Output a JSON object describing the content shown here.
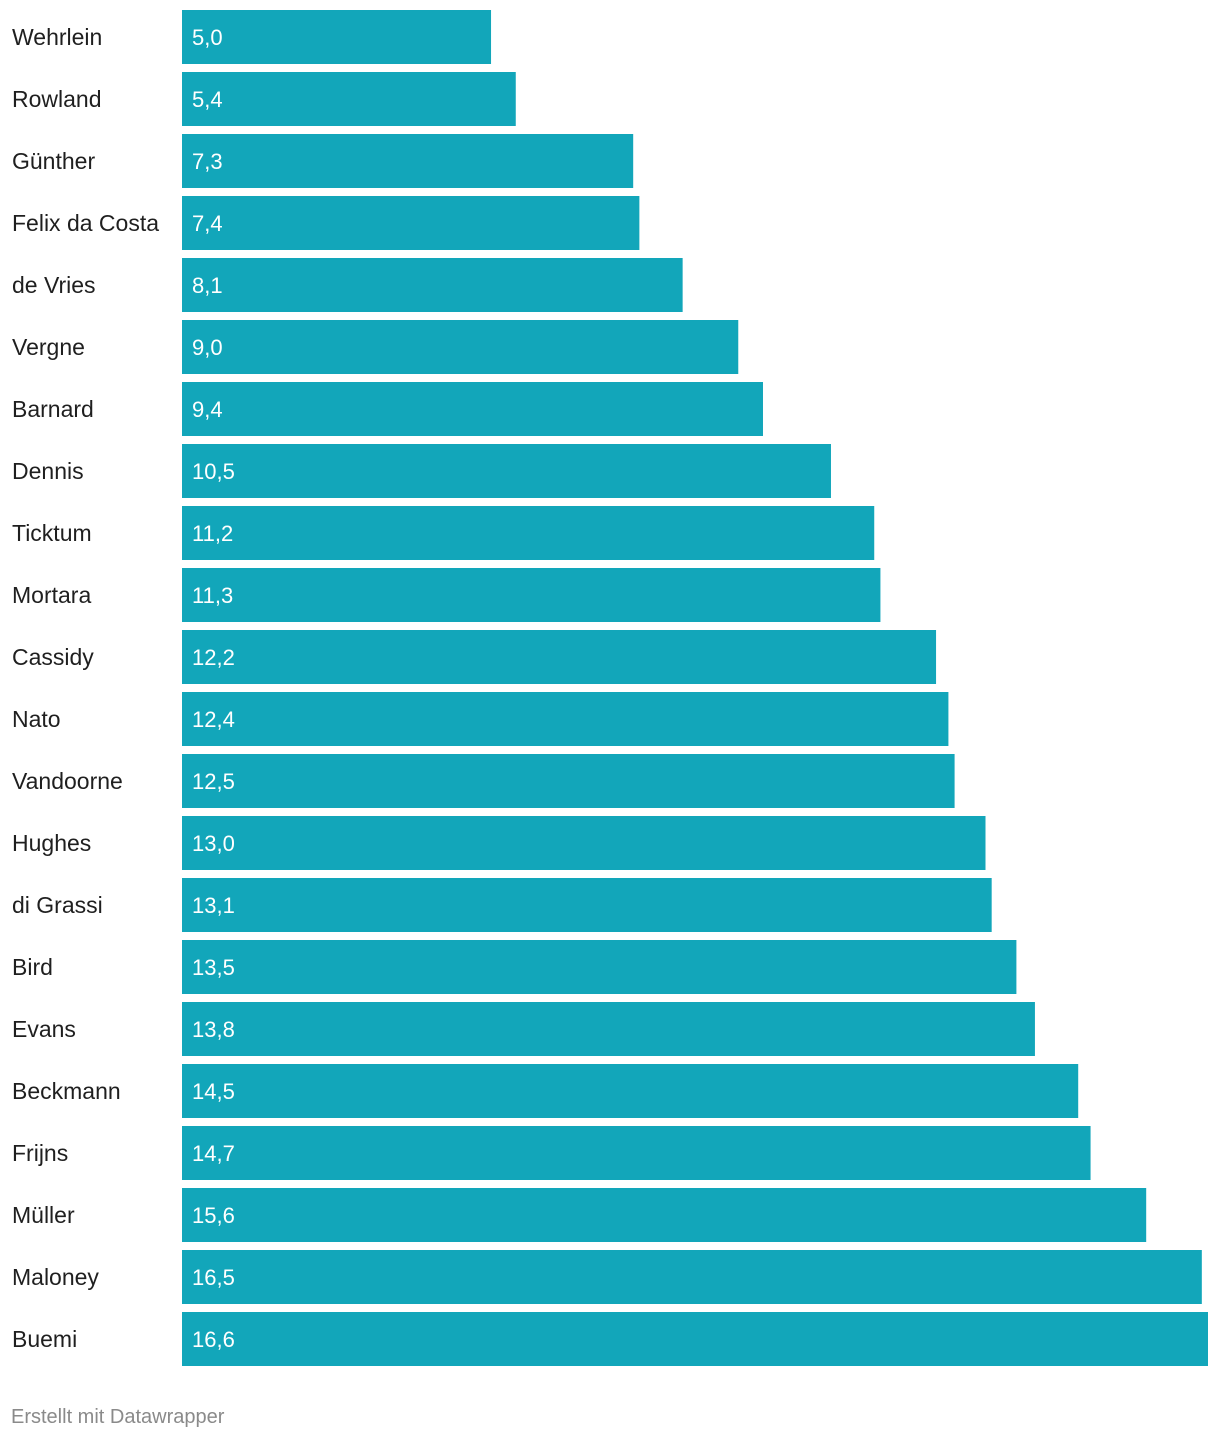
{
  "chart_data": {
    "type": "bar",
    "orientation": "horizontal",
    "title": "",
    "xlabel": "",
    "ylabel": "",
    "grid": false,
    "bar_color": "#12a6ba",
    "decimal_separator": ",",
    "categories": [
      "Wehrlein",
      "Rowland",
      "Günther",
      "Felix da Costa",
      "de Vries",
      "Vergne",
      "Barnard",
      "Dennis",
      "Ticktum",
      "Mortara",
      "Cassidy",
      "Nato",
      "Vandoorne",
      "Hughes",
      "di Grassi",
      "Bird",
      "Evans",
      "Beckmann",
      "Frijns",
      "Müller",
      "Maloney",
      "Buemi"
    ],
    "values": [
      5.0,
      5.4,
      7.3,
      7.4,
      8.1,
      9.0,
      9.4,
      10.5,
      11.2,
      11.3,
      12.2,
      12.4,
      12.5,
      13.0,
      13.1,
      13.5,
      13.8,
      14.5,
      14.7,
      15.6,
      16.5,
      16.6
    ],
    "value_labels": [
      "5,0",
      "5,4",
      "7,3",
      "7,4",
      "8,1",
      "9,0",
      "9,4",
      "10,5",
      "11,2",
      "11,3",
      "12,2",
      "12,4",
      "12,5",
      "13,0",
      "13,1",
      "13,5",
      "13,8",
      "14,5",
      "14,7",
      "15,6",
      "16,5",
      "16,6"
    ],
    "xlim": [
      0,
      16.6
    ]
  },
  "footer": {
    "credit": "Erstellt mit Datawrapper"
  }
}
